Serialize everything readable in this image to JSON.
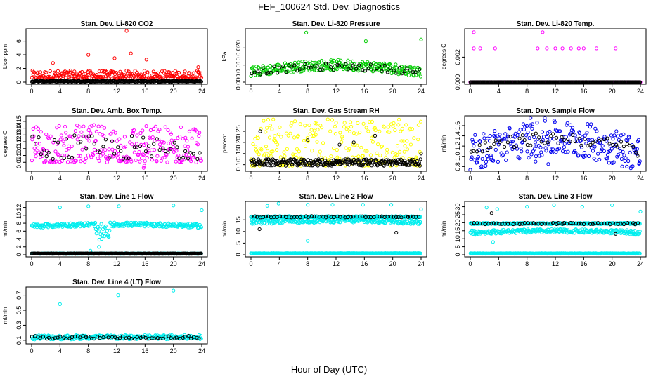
{
  "title": "FEF_100624  Std. Dev. Diagnostics",
  "xlabel": "Hour of Day (UTC)",
  "chart_data": [
    {
      "type": "scatter",
      "title": "Stan. Dev. Li-820 CO2",
      "ylabel": "Licor ppm",
      "xlim": [
        0,
        24
      ],
      "ylim": [
        0,
        7.5
      ],
      "xticks": [
        "0",
        "4",
        "8",
        "12",
        "16",
        "20",
        "24"
      ],
      "yticks": [
        0,
        2,
        4,
        6
      ],
      "color": "#ff0000",
      "series": [
        {
          "color": "#ff0000",
          "pattern": "noise",
          "base": 0.5,
          "amp": 1.2,
          "outliers": [
            [
              8,
              4.0
            ],
            [
              11.7,
              3.5
            ],
            [
              13.4,
              7.5
            ],
            [
              14.0,
              4.2
            ],
            [
              16.2,
              3.3
            ],
            [
              23.5,
              2.2
            ],
            [
              3.0,
              2.8
            ]
          ]
        },
        {
          "color": "#000000",
          "pattern": "flat",
          "level": 0.12,
          "amp": 0.08
        }
      ]
    },
    {
      "type": "scatter",
      "title": "Stan. Dev. Li-820 Pressure",
      "ylabel": "kPa",
      "xlim": [
        0,
        24
      ],
      "ylim": [
        0,
        0.03
      ],
      "xticks": [
        "0",
        "4",
        "8",
        "12",
        "16",
        "20",
        "24"
      ],
      "yticks": [
        "0.000",
        "0.010",
        "0.020"
      ],
      "color": "#00cc00",
      "series": [
        {
          "color": "#00cc00",
          "pattern": "band",
          "base": 0.006,
          "hump": 0.004,
          "amp": 0.003,
          "outliers": [
            [
              7.8,
              0.029
            ],
            [
              16.2,
              0.024
            ],
            [
              24.0,
              0.025
            ]
          ]
        },
        {
          "color": "#000000",
          "pattern": "band",
          "base": 0.006,
          "hump": 0.003,
          "amp": 0.002,
          "sparse": true
        }
      ]
    },
    {
      "type": "scatter",
      "title": "Stan. Dev. Li-820 Temp.",
      "ylabel": "degrees C",
      "xlim": [
        0,
        24
      ],
      "ylim": [
        0,
        0.0041
      ],
      "xticks": [
        "0",
        "4",
        "8",
        "12",
        "16",
        "20",
        "24"
      ],
      "yticks": [
        "0.000",
        "0.002"
      ],
      "color": "#ff00ff",
      "series": [
        {
          "color": "#ff00ff",
          "pattern": "levels",
          "points": [
            [
              0.5,
              0.004
            ],
            [
              0.5,
              0.0027
            ],
            [
              1.4,
              0.0027
            ],
            [
              3.5,
              0.0027
            ],
            [
              10.2,
              0.004
            ],
            [
              9.5,
              0.0027
            ],
            [
              10.8,
              0.0027
            ],
            [
              12.0,
              0.0027
            ],
            [
              13.0,
              0.0027
            ],
            [
              14.2,
              0.0027
            ],
            [
              15.3,
              0.0027
            ],
            [
              16.0,
              0.0027
            ],
            [
              17.8,
              0.0027
            ],
            [
              20.5,
              0.0027
            ]
          ],
          "floor": 0.0
        },
        {
          "color": "#000000",
          "pattern": "flat",
          "level": 0.0,
          "amp": 0.0
        }
      ]
    },
    {
      "type": "scatter",
      "title": "Stan. Dev. Amb. Box Temp.",
      "ylabel": "degrees C",
      "xlim": [
        0,
        24
      ],
      "ylim": [
        0.08,
        0.155
      ],
      "xticks": [
        "0",
        "4",
        "8",
        "12",
        "16",
        "20",
        "24"
      ],
      "yticks": [
        "0.09",
        "0.10",
        "0.11",
        "0.12",
        "0.13",
        "0.14",
        "0.15"
      ],
      "color": "#ff00ff",
      "series": [
        {
          "color": "#ff00ff",
          "pattern": "noise",
          "base": 0.09,
          "amp": 0.055,
          "outliers": [
            [
              15.8,
              0.082
            ],
            [
              15.9,
              0.085
            ]
          ]
        },
        {
          "color": "#000000",
          "pattern": "noise",
          "base": 0.095,
          "amp": 0.035,
          "sparse": true
        }
      ]
    },
    {
      "type": "scatter",
      "title": "Stan. Dev. Gas Stream RH",
      "ylabel": "percent",
      "xlim": [
        0,
        24
      ],
      "ylim": [
        0.08,
        0.31
      ],
      "xticks": [
        "0",
        "4",
        "8",
        "12",
        "16",
        "20",
        "24"
      ],
      "yticks": [
        "0.10",
        "0.15",
        "0.20",
        "0.25"
      ],
      "color": "#ffff00",
      "series": [
        {
          "color": "#ffff00",
          "pattern": "noise",
          "base": 0.095,
          "amp": 0.21,
          "outliers": []
        },
        {
          "color": "#000000",
          "pattern": "flat",
          "level": 0.11,
          "amp": 0.015,
          "outliers": [
            [
              1.3,
              0.25
            ],
            [
              8.0,
              0.21
            ],
            [
              12.5,
              0.19
            ],
            [
              14.5,
              0.2
            ],
            [
              17.5,
              0.23
            ],
            [
              24.0,
              0.15
            ]
          ]
        }
      ]
    },
    {
      "type": "scatter",
      "title": "Stan. Dev. Sample Flow",
      "ylabel": "ml/min",
      "xlim": [
        0,
        24
      ],
      "ylim": [
        0.75,
        1.75
      ],
      "xticks": [
        "0",
        "4",
        "8",
        "12",
        "16",
        "20",
        "24"
      ],
      "yticks": [
        "0.8",
        "1.0",
        "1.2",
        "1.4",
        "1.6"
      ],
      "color": "#0000ee",
      "series": [
        {
          "color": "#0000ee",
          "pattern": "band",
          "base": 1.05,
          "hump": 0.3,
          "amp": 0.35,
          "outliers": [
            [
              8.5,
              1.75
            ],
            [
              10.5,
              1.75
            ],
            [
              9.2,
              0.9
            ],
            [
              11.0,
              0.85
            ],
            [
              23.8,
              0.85
            ]
          ]
        },
        {
          "color": "#000000",
          "pattern": "band",
          "base": 1.1,
          "hump": 0.25,
          "amp": 0.12,
          "sparse": true
        }
      ]
    },
    {
      "type": "scatter",
      "title": "Stan. Dev. Line 1 Flow",
      "ylabel": "ml/min",
      "xlim": [
        0,
        24
      ],
      "ylim": [
        0,
        13
      ],
      "xticks": [
        "0",
        "4",
        "8",
        "12",
        "16",
        "20",
        "24"
      ],
      "yticks": [
        0,
        2,
        4,
        6,
        8,
        10,
        12
      ],
      "color": "#00eeee",
      "series": [
        {
          "color": "#00eeee",
          "pattern": "band",
          "base": 7.3,
          "hump": 0.4,
          "amp": 0.5,
          "dip": [
            9.0,
            11.0,
            3.5
          ],
          "outliers": [
            [
              4.0,
              12.0
            ],
            [
              8.0,
              12.3
            ],
            [
              12.3,
              12.3
            ],
            [
              20.0,
              12.5
            ],
            [
              24.0,
              11.3
            ],
            [
              9.5,
              2.0
            ],
            [
              8.3,
              1.0
            ]
          ]
        },
        {
          "color": "#00eeee",
          "pattern": "flat",
          "level": 0.3,
          "amp": 0.05
        },
        {
          "color": "#000000",
          "pattern": "flat",
          "level": 0.3,
          "amp": 0.05
        }
      ]
    },
    {
      "type": "scatter",
      "title": "Stan. Dev. Line 2 Flow",
      "ylabel": "ml/min",
      "xlim": [
        0,
        24
      ],
      "ylim": [
        0,
        22
      ],
      "xticks": [
        "0",
        "4",
        "8",
        "12",
        "16",
        "20",
        "24"
      ],
      "yticks": [
        0,
        5,
        10,
        15
      ],
      "color": "#00eeee",
      "series": [
        {
          "color": "#00eeee",
          "pattern": "band",
          "base": 14.0,
          "hump": 0.8,
          "amp": 1.0,
          "outliers": [
            [
              2.3,
              21.0
            ],
            [
              3.9,
              22.0
            ],
            [
              8.0,
              21.5
            ],
            [
              11.5,
              21.5
            ],
            [
              15.8,
              21.5
            ],
            [
              19.8,
              21.5
            ],
            [
              24.0,
              19.5
            ],
            [
              8.0,
              6.0
            ]
          ]
        },
        {
          "color": "#00eeee",
          "pattern": "flat",
          "level": 16.3,
          "amp": 0.3
        },
        {
          "color": "#00eeee",
          "pattern": "flat",
          "level": 0.6,
          "amp": 0.1
        },
        {
          "color": "#000000",
          "pattern": "flat",
          "level": 16.3,
          "amp": 0.3,
          "sparse": true,
          "outliers": [
            [
              1.2,
              11.0
            ],
            [
              20.5,
              9.5
            ]
          ]
        }
      ]
    },
    {
      "type": "scatter",
      "title": "Stan. Dev. Line 3 Flow",
      "ylabel": "ml/min",
      "xlim": [
        0,
        24
      ],
      "ylim": [
        0,
        32
      ],
      "xticks": [
        "0",
        "4",
        "8",
        "12",
        "16",
        "20",
        "24"
      ],
      "yticks": [
        0,
        5,
        10,
        15,
        20,
        25,
        30
      ],
      "color": "#00eeee",
      "series": [
        {
          "color": "#00eeee",
          "pattern": "band",
          "base": 14.0,
          "hump": 0.8,
          "amp": 1.2,
          "outliers": [
            [
              2.3,
              29.5
            ],
            [
              3.8,
              28.5
            ],
            [
              8.0,
              30.0
            ],
            [
              11.8,
              31.0
            ],
            [
              15.8,
              30.0
            ],
            [
              20.0,
              31.0
            ],
            [
              24.0,
              27.0
            ],
            [
              3.2,
              8.0
            ]
          ]
        },
        {
          "color": "#00eeee",
          "pattern": "flat",
          "level": 19.5,
          "amp": 0.4
        },
        {
          "color": "#00eeee",
          "pattern": "flat",
          "level": 0.8,
          "amp": 0.15
        },
        {
          "color": "#000000",
          "pattern": "flat",
          "level": 19.5,
          "amp": 0.5,
          "sparse": true,
          "outliers": [
            [
              3.0,
              26.0
            ],
            [
              20.5,
              13.0
            ]
          ]
        }
      ]
    },
    {
      "type": "scatter",
      "title": "Stan. Dev. Line 4 (LT) Flow",
      "ylabel": "ml/min",
      "xlim": [
        0,
        24
      ],
      "ylim": [
        0.08,
        0.78
      ],
      "xticks": [
        "0",
        "4",
        "8",
        "12",
        "16",
        "20",
        "24"
      ],
      "yticks": [
        "0.1",
        "0.3",
        "0.5",
        "0.7"
      ],
      "color": "#00eeee",
      "series": [
        {
          "color": "#00eeee",
          "pattern": "flat",
          "level": 0.14,
          "amp": 0.03,
          "outliers": [
            [
              4.0,
              0.58
            ],
            [
              12.2,
              0.7
            ],
            [
              20.0,
              0.76
            ]
          ]
        },
        {
          "color": "#000000",
          "pattern": "flat",
          "level": 0.14,
          "amp": 0.02,
          "sparse": true
        }
      ]
    }
  ]
}
